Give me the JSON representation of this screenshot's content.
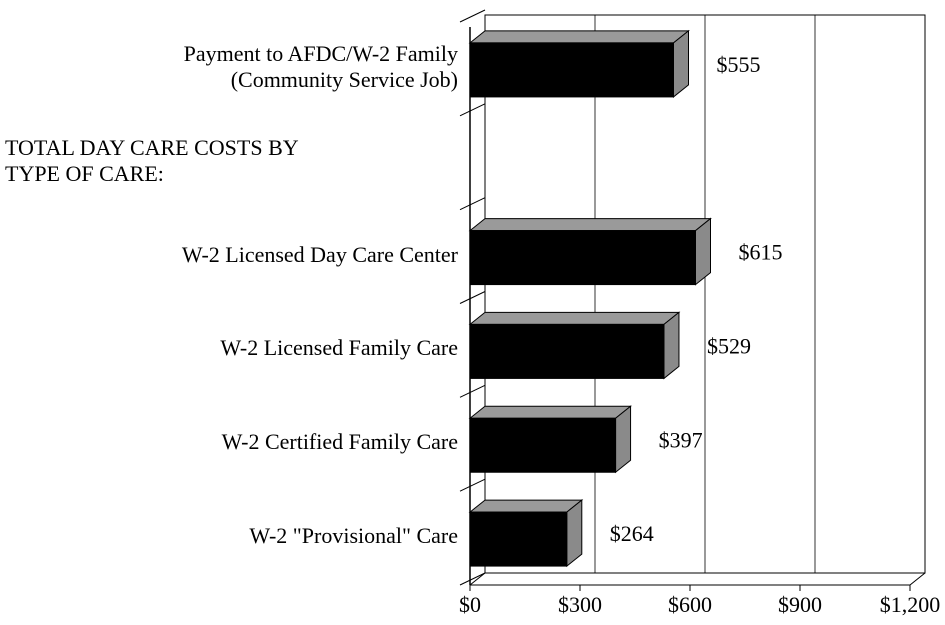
{
  "chart_data": {
    "type": "bar",
    "orientation": "horizontal",
    "categories": [
      "Payment to AFDC/W-2 Family\n(Community Service Job)",
      "TOTAL DAY CARE COSTS BY\nTYPE OF CARE:",
      "W-2 Licensed Day Care Center",
      "W-2 Licensed Family Care",
      "W-2 Certified Family Care",
      "W-2 \"Provisional\" Care"
    ],
    "values": [
      555,
      null,
      615,
      529,
      397,
      264
    ],
    "value_labels": [
      "$555",
      null,
      "$615",
      "$529",
      "$397",
      "$264"
    ],
    "color": "#000000",
    "xlim": [
      0,
      1200
    ],
    "xticks": [
      {
        "value": 0,
        "label": "$0"
      },
      {
        "value": 300,
        "label": "$300"
      },
      {
        "value": 600,
        "label": "$600"
      },
      {
        "value": 900,
        "label": "$900"
      },
      {
        "value": 1200,
        "label": "$1,200"
      }
    ],
    "grid": true
  }
}
